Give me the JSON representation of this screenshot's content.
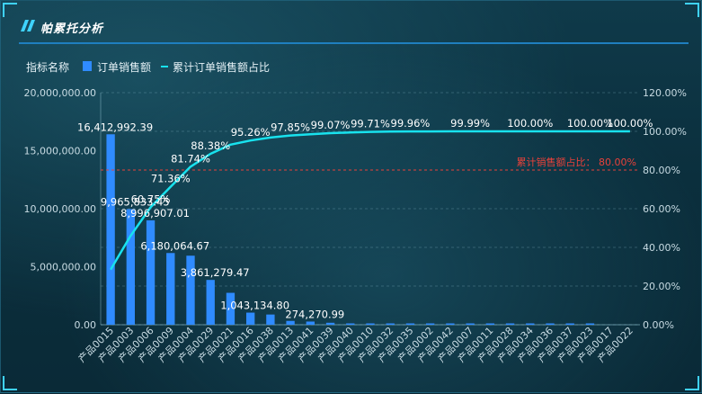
{
  "panel": {
    "title": "帕累托分析"
  },
  "legend": {
    "name_label": "指标名称",
    "bar_label": "订单销售额",
    "line_label": "累计订单销售额占比"
  },
  "colors": {
    "bar": "#2f8bff",
    "line": "#18e2ee",
    "threshold": "#e8413a",
    "accent": "#3fd3ff"
  },
  "chart_data": {
    "type": "bar",
    "categories": [
      "产品0015",
      "产品0003",
      "产品0006",
      "产品0009",
      "产品0004",
      "产品0029",
      "产品0021",
      "产品0016",
      "产品0038",
      "产品0013",
      "产品0041",
      "产品0039",
      "产品0040",
      "产品0010",
      "产品0032",
      "产品0035",
      "产品0002",
      "产品0042",
      "产品0007",
      "产品0011",
      "产品0028",
      "产品0034",
      "产品0036",
      "产品0037",
      "产品0023",
      "产品0017",
      "产品0022"
    ],
    "series": [
      {
        "name": "订单销售额",
        "axis": "left",
        "values": [
          16412992.39,
          9965833.45,
          8996907.01,
          6180064.67,
          5950000,
          3861279.47,
          2750000,
          1043134.8,
          880000,
          330000,
          274270.99,
          170000,
          110000,
          70000,
          50000,
          40000,
          30000,
          25000,
          20000,
          15000,
          12000,
          10000,
          8000,
          6000,
          5000,
          0,
          0
        ]
      },
      {
        "name": "累计订单销售额占比",
        "axis": "right",
        "type": "line",
        "values": [
          28.5,
          46.0,
          60.75,
          71.36,
          81.74,
          88.38,
          93.1,
          95.26,
          96.8,
          97.85,
          98.5,
          99.07,
          99.4,
          99.71,
          99.85,
          99.96,
          99.97,
          99.98,
          99.99,
          99.99,
          100.0,
          100.0,
          100.0,
          100.0,
          100.0,
          100.0,
          100.0
        ]
      }
    ],
    "bar_labels": [
      {
        "index": 0,
        "text": "16,412,992.39"
      },
      {
        "index": 1,
        "text": "9,965,833.45"
      },
      {
        "index": 2,
        "text": "8,996,907.01"
      },
      {
        "index": 3,
        "text": "6,180,064.67"
      },
      {
        "index": 5,
        "text": "3,861,279.47"
      },
      {
        "index": 7,
        "text": "1,043,134.80"
      },
      {
        "index": 10,
        "text": "274,270.99"
      }
    ],
    "line_labels": [
      {
        "index": 2,
        "text": "60.75%"
      },
      {
        "index": 3,
        "text": "71.36%"
      },
      {
        "index": 4,
        "text": "81.74%"
      },
      {
        "index": 5,
        "text": "88.38%"
      },
      {
        "index": 7,
        "text": "95.26%"
      },
      {
        "index": 9,
        "text": "97.85%"
      },
      {
        "index": 11,
        "text": "99.07%"
      },
      {
        "index": 13,
        "text": "99.71%"
      },
      {
        "index": 15,
        "text": "99.96%"
      },
      {
        "index": 18,
        "text": "99.99%"
      },
      {
        "index": 21,
        "text": "100.00%"
      },
      {
        "index": 24,
        "text": "100.00%"
      },
      {
        "index": 26,
        "text": "100.00%"
      }
    ],
    "y_left": {
      "min": 0,
      "max": 20000000,
      "ticks": [
        "0.00",
        "5,000,000.00",
        "10,000,000.00",
        "15,000,000.00",
        "20,000,000.00"
      ]
    },
    "y_right": {
      "min": 0,
      "max": 120,
      "ticks": [
        "0.00%",
        "20.00%",
        "40.00%",
        "60.00%",
        "80.00%",
        "100.00%",
        "120.00%"
      ]
    },
    "threshold": {
      "value": 80,
      "label": "累计销售额占比：  80.00%"
    },
    "grid": true,
    "legend_position": "top-left"
  }
}
